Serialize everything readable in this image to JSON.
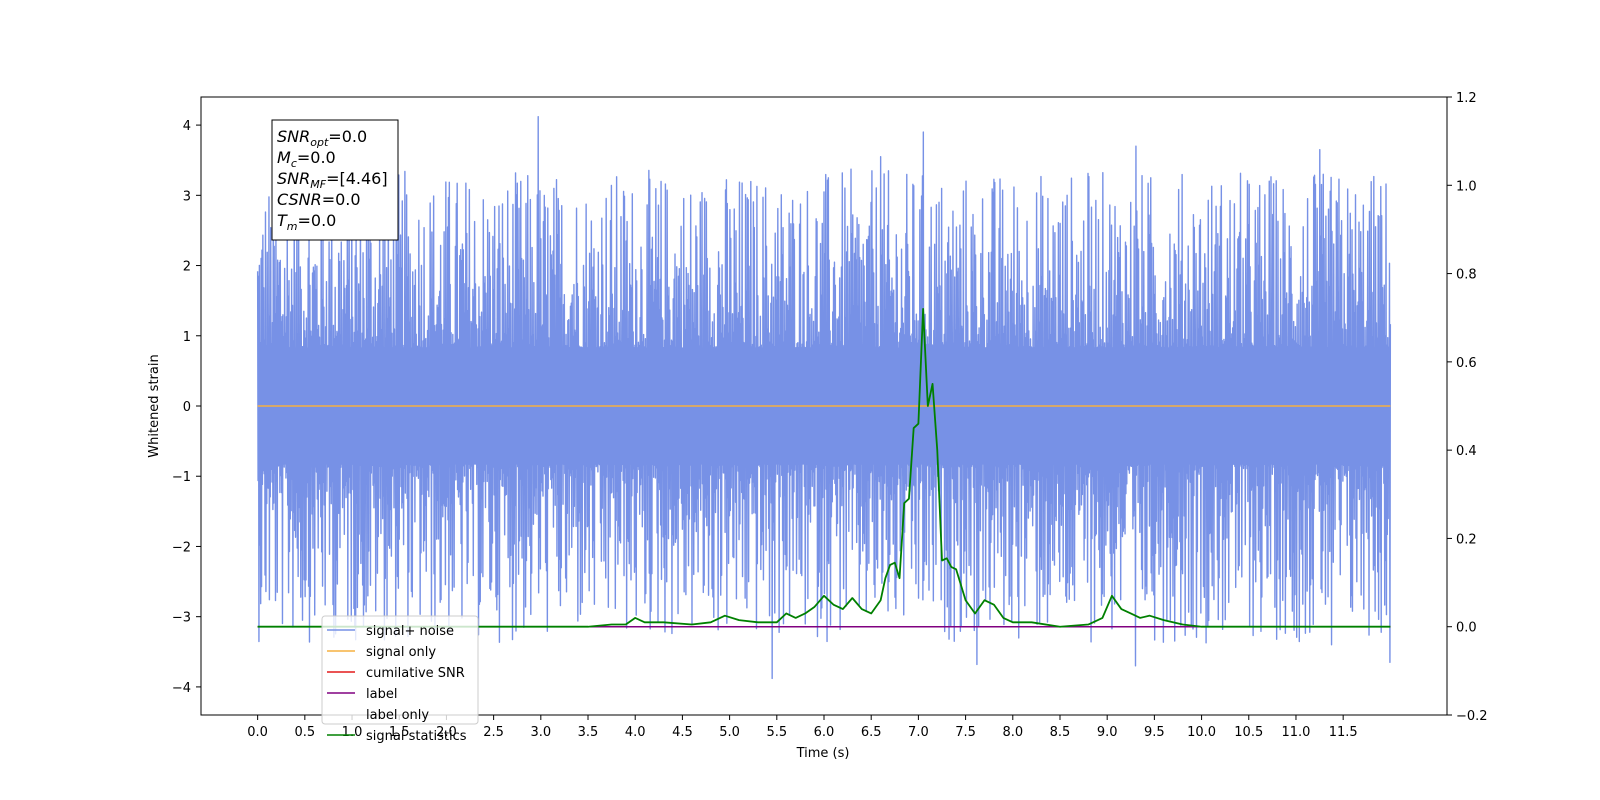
{
  "chart_data": {
    "type": "line",
    "xlabel": "Time (s)",
    "ylabel": "Whitened strain",
    "xlim": [
      -0.6,
      12.6
    ],
    "ylim": [
      -4.4,
      4.4
    ],
    "y2lim": [
      -0.2,
      1.2
    ],
    "xticks": [
      0.0,
      0.5,
      1.0,
      1.5,
      2.0,
      2.5,
      3.0,
      3.5,
      4.0,
      4.5,
      5.0,
      5.5,
      6.0,
      6.5,
      7.0,
      7.5,
      8.0,
      8.5,
      9.0,
      9.5,
      10.0,
      10.5,
      11.0,
      11.5
    ],
    "xtick_labels": [
      "0.0",
      "0.5",
      "1.0",
      "1.5",
      "2.0",
      "2.5",
      "3.0",
      "3.5",
      "4.0",
      "4.5",
      "5.0",
      "5.5",
      "6.0",
      "6.5",
      "7.0",
      "7.5",
      "8.0",
      "8.5",
      "9.0",
      "9.5",
      "10.0",
      "10.5",
      "11.0",
      "11.5"
    ],
    "yticks": [
      -4,
      -3,
      -2,
      -1,
      0,
      1,
      2,
      3,
      4
    ],
    "ytick_labels": [
      "−4",
      "−3",
      "−2",
      "−1",
      "0",
      "1",
      "2",
      "3",
      "4"
    ],
    "y2ticks": [
      -0.2,
      0.0,
      0.2,
      0.4,
      0.6,
      0.8,
      1.0,
      1.2
    ],
    "y2tick_labels": [
      "−0.2",
      "0.0",
      "0.2",
      "0.4",
      "0.6",
      "0.8",
      "1.0",
      "1.2"
    ],
    "grid": false,
    "legend_position": "lower-left",
    "stats_box": [
      {
        "name": "SNR",
        "sub": "opt",
        "value": "=0.0"
      },
      {
        "name": "M",
        "sub": "c",
        "value": "=0.0"
      },
      {
        "name": "SNR",
        "sub": "MF",
        "value": "=[4.46]"
      },
      {
        "name": "CSNR",
        "sub": "",
        "value": "=0.0"
      },
      {
        "name": "T",
        "sub": "m",
        "value": "=0.0"
      }
    ],
    "series": [
      {
        "name": "signal+ noise",
        "color": "#7791e6",
        "axis": "left",
        "noise_band": {
          "t_start": 0.0,
          "t_end": 12.0,
          "typical_max": 1.5,
          "typical_min": -1.5,
          "peak_max": 4.12,
          "peak_min": -3.88
        },
        "spikes": [
          [
            2.97,
            4.12
          ],
          [
            7.05,
            3.9
          ],
          [
            9.3,
            3.7
          ],
          [
            11.25,
            3.65
          ],
          [
            6.6,
            3.55
          ],
          [
            5.45,
            -3.88
          ],
          [
            9.3,
            -3.7
          ],
          [
            7.62,
            -3.68
          ],
          [
            12.0,
            -3.65
          ],
          [
            11.38,
            -3.4
          ]
        ]
      },
      {
        "name": "signal only",
        "color": "#f5b041",
        "axis": "left",
        "x": [
          0.0,
          12.0
        ],
        "y": [
          0.0,
          0.0
        ]
      },
      {
        "name": "cumilative SNR",
        "color": "#e41a1c",
        "axis": "right",
        "x": [
          0.0,
          12.0
        ],
        "y": [
          0.0,
          0.0
        ]
      },
      {
        "name": "label",
        "color": "#800080",
        "axis": "right",
        "x": [
          0.0,
          12.0
        ],
        "y": [
          0.0,
          0.0
        ]
      },
      {
        "name": "label only",
        "color": "#aaaaaa",
        "axis": "right",
        "visible_line": false
      },
      {
        "name": "signal statistics",
        "color": "#008000",
        "axis": "right",
        "x": [
          0.0,
          0.5,
          1.0,
          1.5,
          2.0,
          2.5,
          3.0,
          3.5,
          3.75,
          3.9,
          4.0,
          4.1,
          4.3,
          4.6,
          4.8,
          4.95,
          5.1,
          5.3,
          5.5,
          5.6,
          5.7,
          5.8,
          5.9,
          6.0,
          6.1,
          6.2,
          6.3,
          6.4,
          6.5,
          6.6,
          6.65,
          6.7,
          6.75,
          6.8,
          6.85,
          6.9,
          6.95,
          7.0,
          7.05,
          7.1,
          7.15,
          7.2,
          7.25,
          7.3,
          7.35,
          7.4,
          7.5,
          7.6,
          7.7,
          7.8,
          7.9,
          8.0,
          8.2,
          8.5,
          8.8,
          8.95,
          9.05,
          9.15,
          9.25,
          9.35,
          9.45,
          9.6,
          9.8,
          10.0,
          10.5,
          11.0,
          11.5,
          12.0
        ],
        "y": [
          0.0,
          0.0,
          0.0,
          0.0,
          0.0,
          0.0,
          0.0,
          0.0,
          0.005,
          0.005,
          0.02,
          0.01,
          0.01,
          0.005,
          0.01,
          0.025,
          0.015,
          0.01,
          0.01,
          0.03,
          0.02,
          0.03,
          0.045,
          0.07,
          0.05,
          0.04,
          0.065,
          0.04,
          0.03,
          0.06,
          0.11,
          0.14,
          0.145,
          0.11,
          0.28,
          0.29,
          0.45,
          0.46,
          0.72,
          0.5,
          0.55,
          0.4,
          0.15,
          0.155,
          0.135,
          0.13,
          0.06,
          0.03,
          0.06,
          0.05,
          0.02,
          0.01,
          0.01,
          0.0,
          0.005,
          0.02,
          0.07,
          0.04,
          0.03,
          0.02,
          0.025,
          0.015,
          0.005,
          0.0,
          0.0,
          0.0,
          0.0,
          0.0
        ]
      }
    ]
  }
}
